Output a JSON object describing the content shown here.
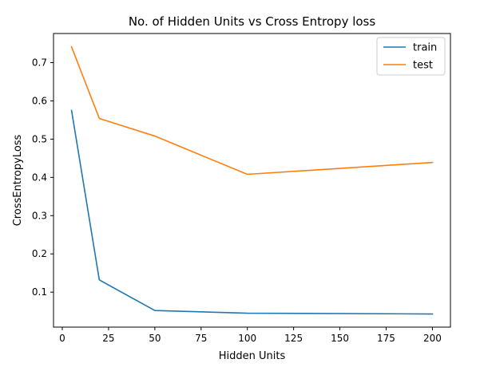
{
  "chart_data": {
    "type": "line",
    "title": "No. of Hidden Units vs Cross Entropy loss",
    "xlabel": "Hidden Units",
    "ylabel": "CrossEntropyLoss",
    "x": [
      5,
      20,
      50,
      100,
      200
    ],
    "series": [
      {
        "name": "train",
        "color": "#1f77b4",
        "values": [
          0.575,
          0.132,
          0.052,
          0.045,
          0.043
        ]
      },
      {
        "name": "test",
        "color": "#ff7f0e",
        "values": [
          0.741,
          0.554,
          0.508,
          0.408,
          0.439
        ]
      }
    ],
    "xlim": [
      -4.75,
      209.75
    ],
    "ylim": [
      0.0086,
      0.7761
    ],
    "xticks": [
      "0",
      "25",
      "50",
      "75",
      "100",
      "125",
      "150",
      "175",
      "200"
    ],
    "yticks": [
      "0.1",
      "0.2",
      "0.3",
      "0.4",
      "0.5",
      "0.6",
      "0.7"
    ],
    "grid": false,
    "legend_position": "top-right"
  }
}
